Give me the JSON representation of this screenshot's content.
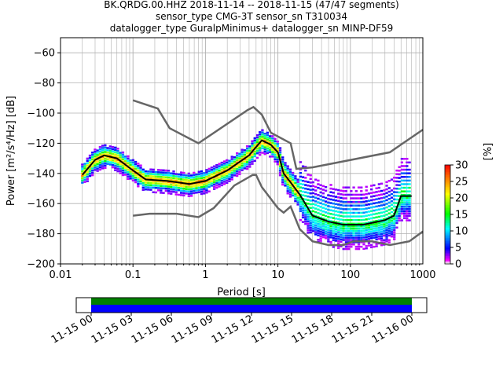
{
  "chart_data": {
    "type": "heatmap",
    "title_lines": [
      "BK.QRDG.00.HHZ   2018-11-14 -- 2018-11-15  (47/47 segments)",
      "sensor_type CMG-3T sensor_sn T310034",
      "datalogger_type GuralpMinimus+ datalogger_sn MINP-DF59"
    ],
    "xlabel": "Period [s]",
    "ylabel": "Power [m²/s⁴/Hz] [dB]",
    "xscale": "log",
    "xlim": [
      0.01,
      1000
    ],
    "ylim": [
      -200,
      -50
    ],
    "xticks": [
      {
        "v": 0.01,
        "label": "0.01"
      },
      {
        "v": 0.1,
        "label": "0.1"
      },
      {
        "v": 1,
        "label": "1"
      },
      {
        "v": 10,
        "label": "10"
      },
      {
        "v": 100,
        "label": "100"
      },
      {
        "v": 1000,
        "label": "1000"
      }
    ],
    "yticks": [
      {
        "v": -60,
        "label": "−60"
      },
      {
        "v": -80,
        "label": "−80"
      },
      {
        "v": -100,
        "label": "−100"
      },
      {
        "v": -120,
        "label": "−120"
      },
      {
        "v": -140,
        "label": "−140"
      },
      {
        "v": -160,
        "label": "−160"
      },
      {
        "v": -180,
        "label": "−180"
      },
      {
        "v": -200,
        "label": "−200"
      }
    ],
    "grid": true,
    "noise_model_high": [
      [
        0.1,
        -91.5
      ],
      [
        0.22,
        -97
      ],
      [
        0.32,
        -110
      ],
      [
        0.8,
        -120
      ],
      [
        3.8,
        -98
      ],
      [
        4.6,
        -96
      ],
      [
        6,
        -101
      ],
      [
        8,
        -113
      ],
      [
        15,
        -120
      ],
      [
        18,
        -137
      ],
      [
        30,
        -136
      ],
      [
        350,
        -126
      ],
      [
        1000,
        -111
      ]
    ],
    "noise_model_low": [
      [
        0.1,
        -168
      ],
      [
        0.17,
        -166.7
      ],
      [
        0.4,
        -166.7
      ],
      [
        0.8,
        -169
      ],
      [
        1.3,
        -163
      ],
      [
        2.5,
        -148
      ],
      [
        4.5,
        -141
      ],
      [
        5,
        -141
      ],
      [
        6,
        -149
      ],
      [
        10,
        -163
      ],
      [
        12,
        -166
      ],
      [
        15,
        -162
      ],
      [
        20,
        -177
      ],
      [
        30,
        -185
      ],
      [
        50,
        -187.5
      ],
      [
        80,
        -187.5
      ],
      [
        110,
        -185
      ],
      [
        200,
        -185
      ],
      [
        350,
        -187.5
      ],
      [
        650,
        -185
      ],
      [
        1000,
        -178.5
      ]
    ],
    "mean": [
      [
        0.02,
        -141
      ],
      [
        0.03,
        -131
      ],
      [
        0.04,
        -128
      ],
      [
        0.06,
        -130
      ],
      [
        0.1,
        -138
      ],
      [
        0.15,
        -144
      ],
      [
        0.3,
        -145
      ],
      [
        0.6,
        -147
      ],
      [
        1,
        -145
      ],
      [
        2,
        -138
      ],
      [
        4,
        -128
      ],
      [
        6,
        -118
      ],
      [
        8,
        -121
      ],
      [
        10,
        -126
      ],
      [
        12,
        -140
      ],
      [
        15,
        -146
      ],
      [
        20,
        -154
      ],
      [
        30,
        -168
      ],
      [
        50,
        -172
      ],
      [
        80,
        -174
      ],
      [
        150,
        -174
      ],
      [
        300,
        -171
      ],
      [
        400,
        -168
      ],
      [
        500,
        -155
      ],
      [
        700,
        -155
      ]
    ],
    "colorbar": {
      "label": "[%]",
      "range": [
        0,
        30
      ],
      "ticks": [
        "0",
        "5",
        "10",
        "15",
        "20",
        "25",
        "30"
      ]
    },
    "timeline": {
      "ticks": [
        "11-15 00",
        "11-15 03",
        "11-15 06",
        "11-15 09",
        "11-15 12",
        "11-15 15",
        "11-15 18",
        "11-15 21",
        "11-16 00"
      ],
      "coverage_colors": {
        "data": "#008000",
        "used": "#0000ff"
      }
    }
  }
}
